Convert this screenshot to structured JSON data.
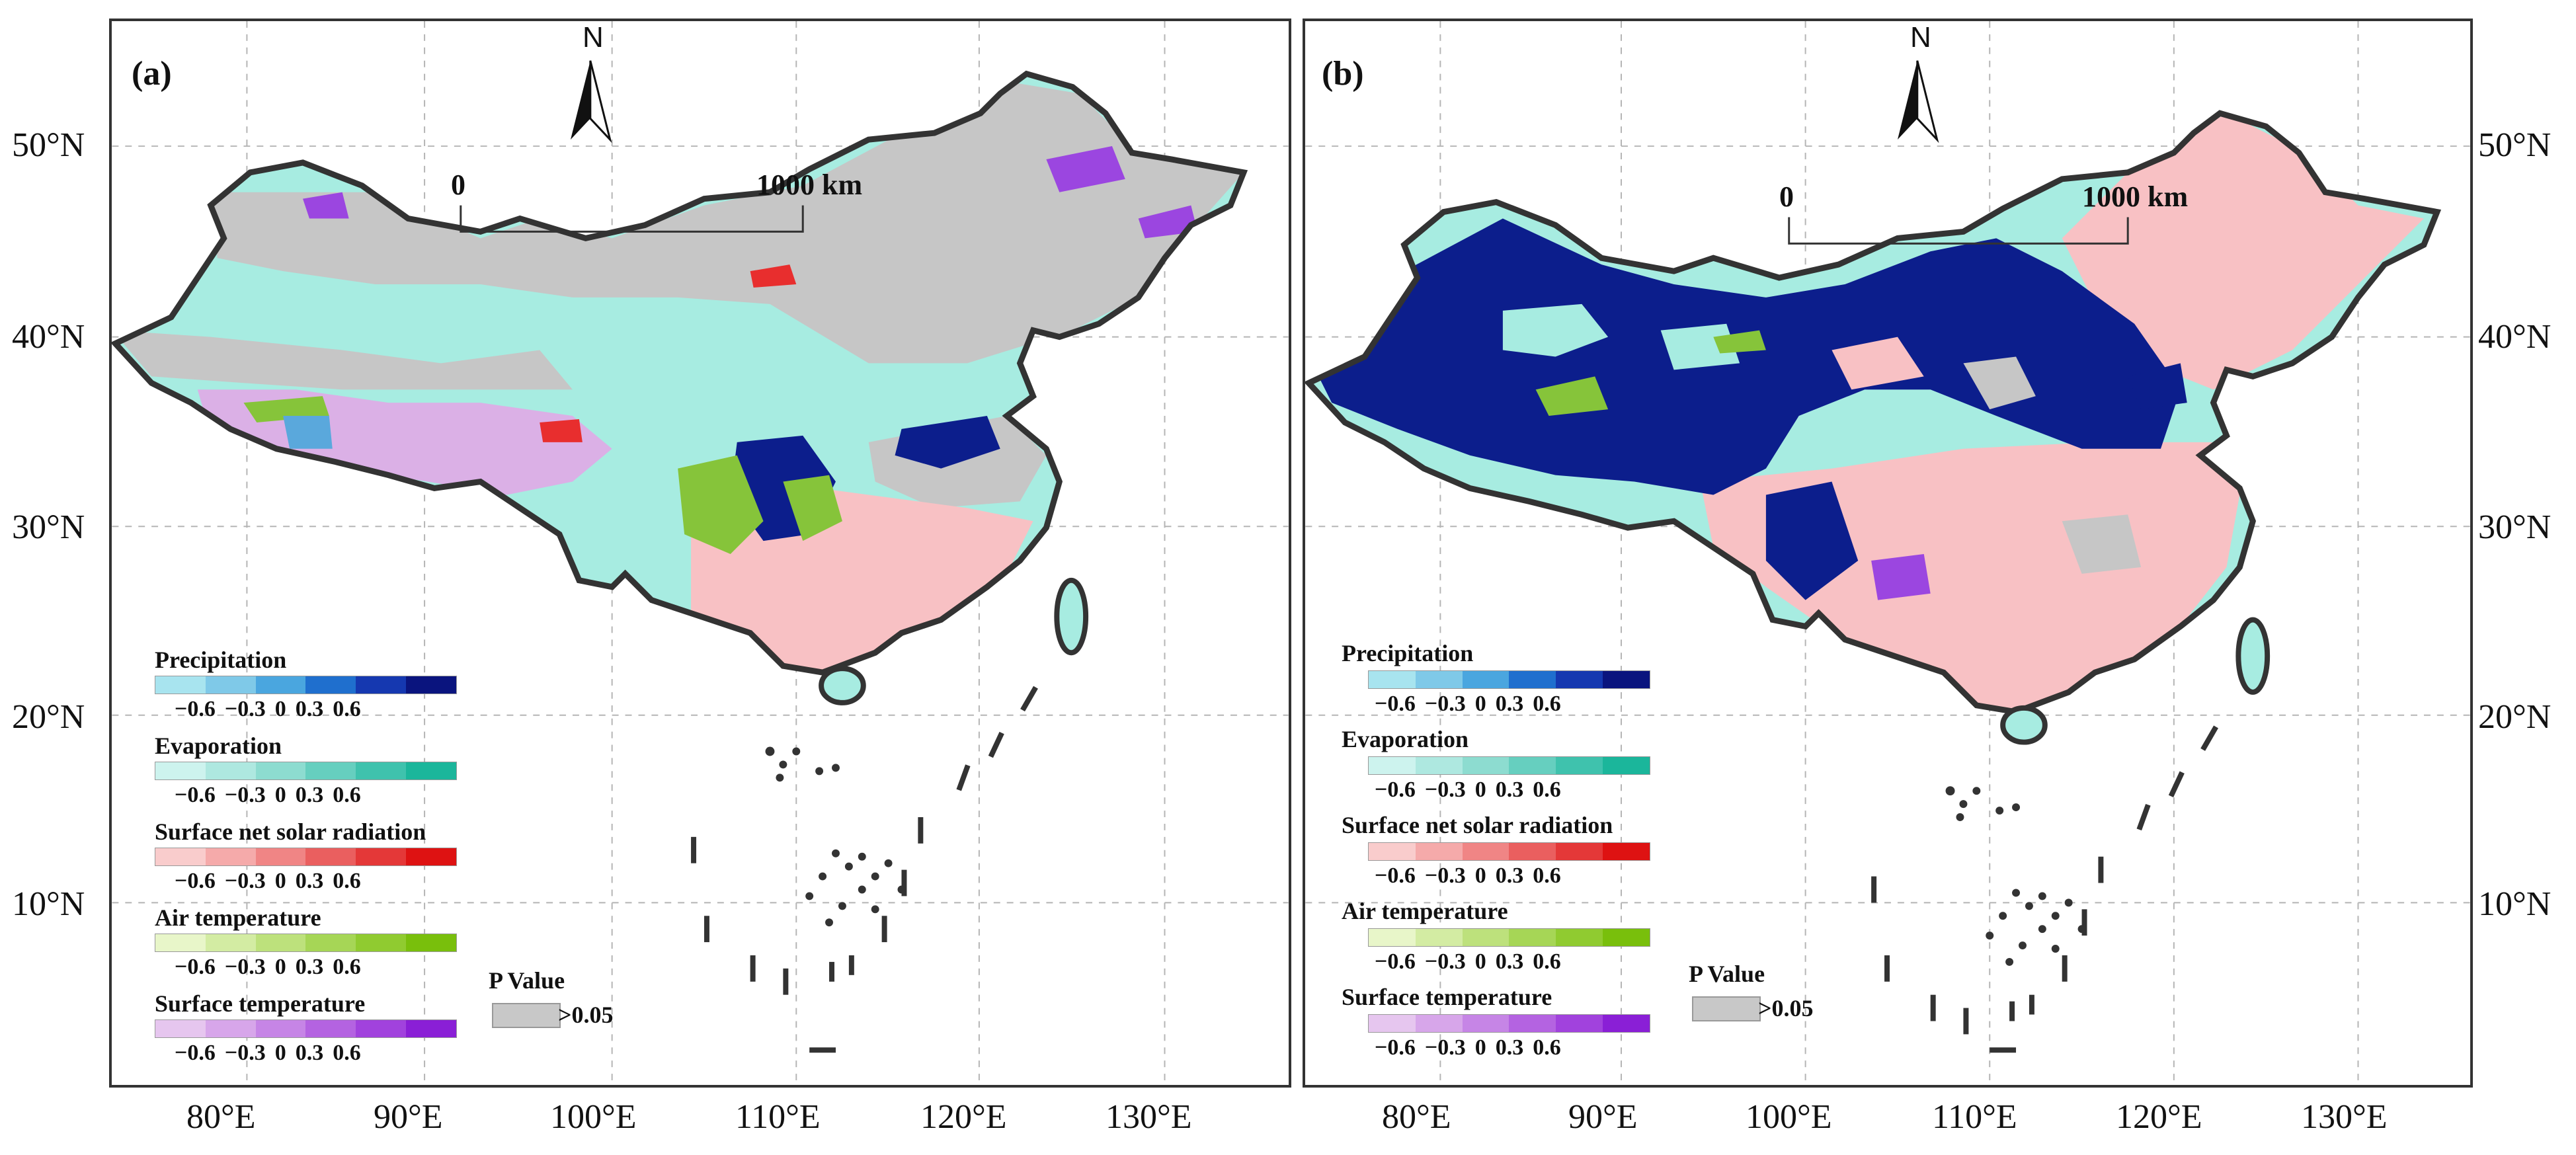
{
  "panels": [
    {
      "label": "(a)",
      "north": "N",
      "scale": {
        "start": "0",
        "end": "1000 km"
      },
      "legends": [
        {
          "title": "Precipitation",
          "ticks": [
            "−0.6",
            "−0.3",
            "0",
            "0.3",
            "0.6"
          ],
          "colors": [
            "#a8e4ef",
            "#7fc9e8",
            "#4aa6df",
            "#1f6fce",
            "#1538b0",
            "#0a147e"
          ]
        },
        {
          "title": "Evaporation",
          "ticks": [
            "−0.6",
            "−0.3",
            "0",
            "0.3",
            "0.6"
          ],
          "colors": [
            "#cdf3ee",
            "#aee8e0",
            "#8ddcd0",
            "#66cfbf",
            "#3fc2ad",
            "#1bb69b"
          ]
        },
        {
          "title": "Surface net solar radiation",
          "ticks": [
            "−0.6",
            "−0.3",
            "0",
            "0.3",
            "0.6"
          ],
          "colors": [
            "#f9cccc",
            "#f5aaaa",
            "#f08585",
            "#ea5f5f",
            "#e43838",
            "#de1212"
          ]
        },
        {
          "title": "Air temperature",
          "ticks": [
            "−0.6",
            "−0.3",
            "0",
            "0.3",
            "0.6"
          ],
          "colors": [
            "#e8f6c9",
            "#d3eca3",
            "#bde17c",
            "#a6d656",
            "#90cb30",
            "#79bf0c"
          ]
        },
        {
          "title": "Surface temperature",
          "ticks": [
            "−0.6",
            "−0.3",
            "0",
            "0.3",
            "0.6"
          ],
          "colors": [
            "#e6c6ef",
            "#d7a6ea",
            "#c685e6",
            "#b463e1",
            "#a142dd",
            "#8a1fd6"
          ]
        }
      ],
      "pvalue": {
        "title": "P Value",
        "text": ">0.05",
        "color": "#c8c8c8"
      },
      "map_colors": {
        "base": "#a7ece1",
        "gray": "#c6c6c6",
        "pink": "#f8c1c4",
        "navy": "#0c1e8c",
        "green": "#86c43a",
        "lilac": "#dbb0e6",
        "purple": "#9b46e0",
        "red": "#e82e2e",
        "blue": "#5aa8dc"
      },
      "lat_labels": [
        "50°N",
        "40°N",
        "30°N",
        "20°N",
        "10°N"
      ],
      "lon_labels": [
        "80°E",
        "90°E",
        "100°E",
        "110°E",
        "120°E",
        "130°E"
      ]
    },
    {
      "label": "(b)",
      "north": "N",
      "scale": {
        "start": "0",
        "end": "1000 km"
      },
      "legends": [
        {
          "title": "Precipitation",
          "ticks": [
            "−0.6",
            "−0.3",
            "0",
            "0.3",
            "0.6"
          ],
          "colors": [
            "#a8e4ef",
            "#7fc9e8",
            "#4aa6df",
            "#1f6fce",
            "#1538b0",
            "#0a147e"
          ]
        },
        {
          "title": "Evaporation",
          "ticks": [
            "−0.6",
            "−0.3",
            "0",
            "0.3",
            "0.6"
          ],
          "colors": [
            "#cdf3ee",
            "#aee8e0",
            "#8ddcd0",
            "#66cfbf",
            "#3fc2ad",
            "#1bb69b"
          ]
        },
        {
          "title": "Surface net solar radiation",
          "ticks": [
            "−0.6",
            "−0.3",
            "0",
            "0.3",
            "0.6"
          ],
          "colors": [
            "#f9cccc",
            "#f5aaaa",
            "#f08585",
            "#ea5f5f",
            "#e43838",
            "#de1212"
          ]
        },
        {
          "title": "Air temperature",
          "ticks": [
            "−0.6",
            "−0.3",
            "0",
            "0.3",
            "0.6"
          ],
          "colors": [
            "#e8f6c9",
            "#d3eca3",
            "#bde17c",
            "#a6d656",
            "#90cb30",
            "#79bf0c"
          ]
        },
        {
          "title": "Surface temperature",
          "ticks": [
            "−0.6",
            "−0.3",
            "0",
            "0.3",
            "0.6"
          ],
          "colors": [
            "#e6c6ef",
            "#d7a6ea",
            "#c685e6",
            "#b463e1",
            "#a142dd",
            "#8a1fd6"
          ]
        }
      ],
      "pvalue": {
        "title": "P Value",
        "text": ">0.05",
        "color": "#c8c8c8"
      },
      "map_colors": {
        "base": "#a7ece1",
        "gray": "#c6c6c6",
        "pink": "#f8c1c4",
        "navy": "#0c1e8c",
        "green": "#86c43a",
        "lilac": "#dbb0e6",
        "purple": "#9b46e0",
        "red": "#e82e2e",
        "blue": "#5aa8dc"
      },
      "lat_labels": [
        "50°N",
        "40°N",
        "30°N",
        "20°N",
        "10°N"
      ],
      "lon_labels": [
        "80°E",
        "90°E",
        "100°E",
        "110°E",
        "120°E",
        "130°E"
      ]
    }
  ]
}
